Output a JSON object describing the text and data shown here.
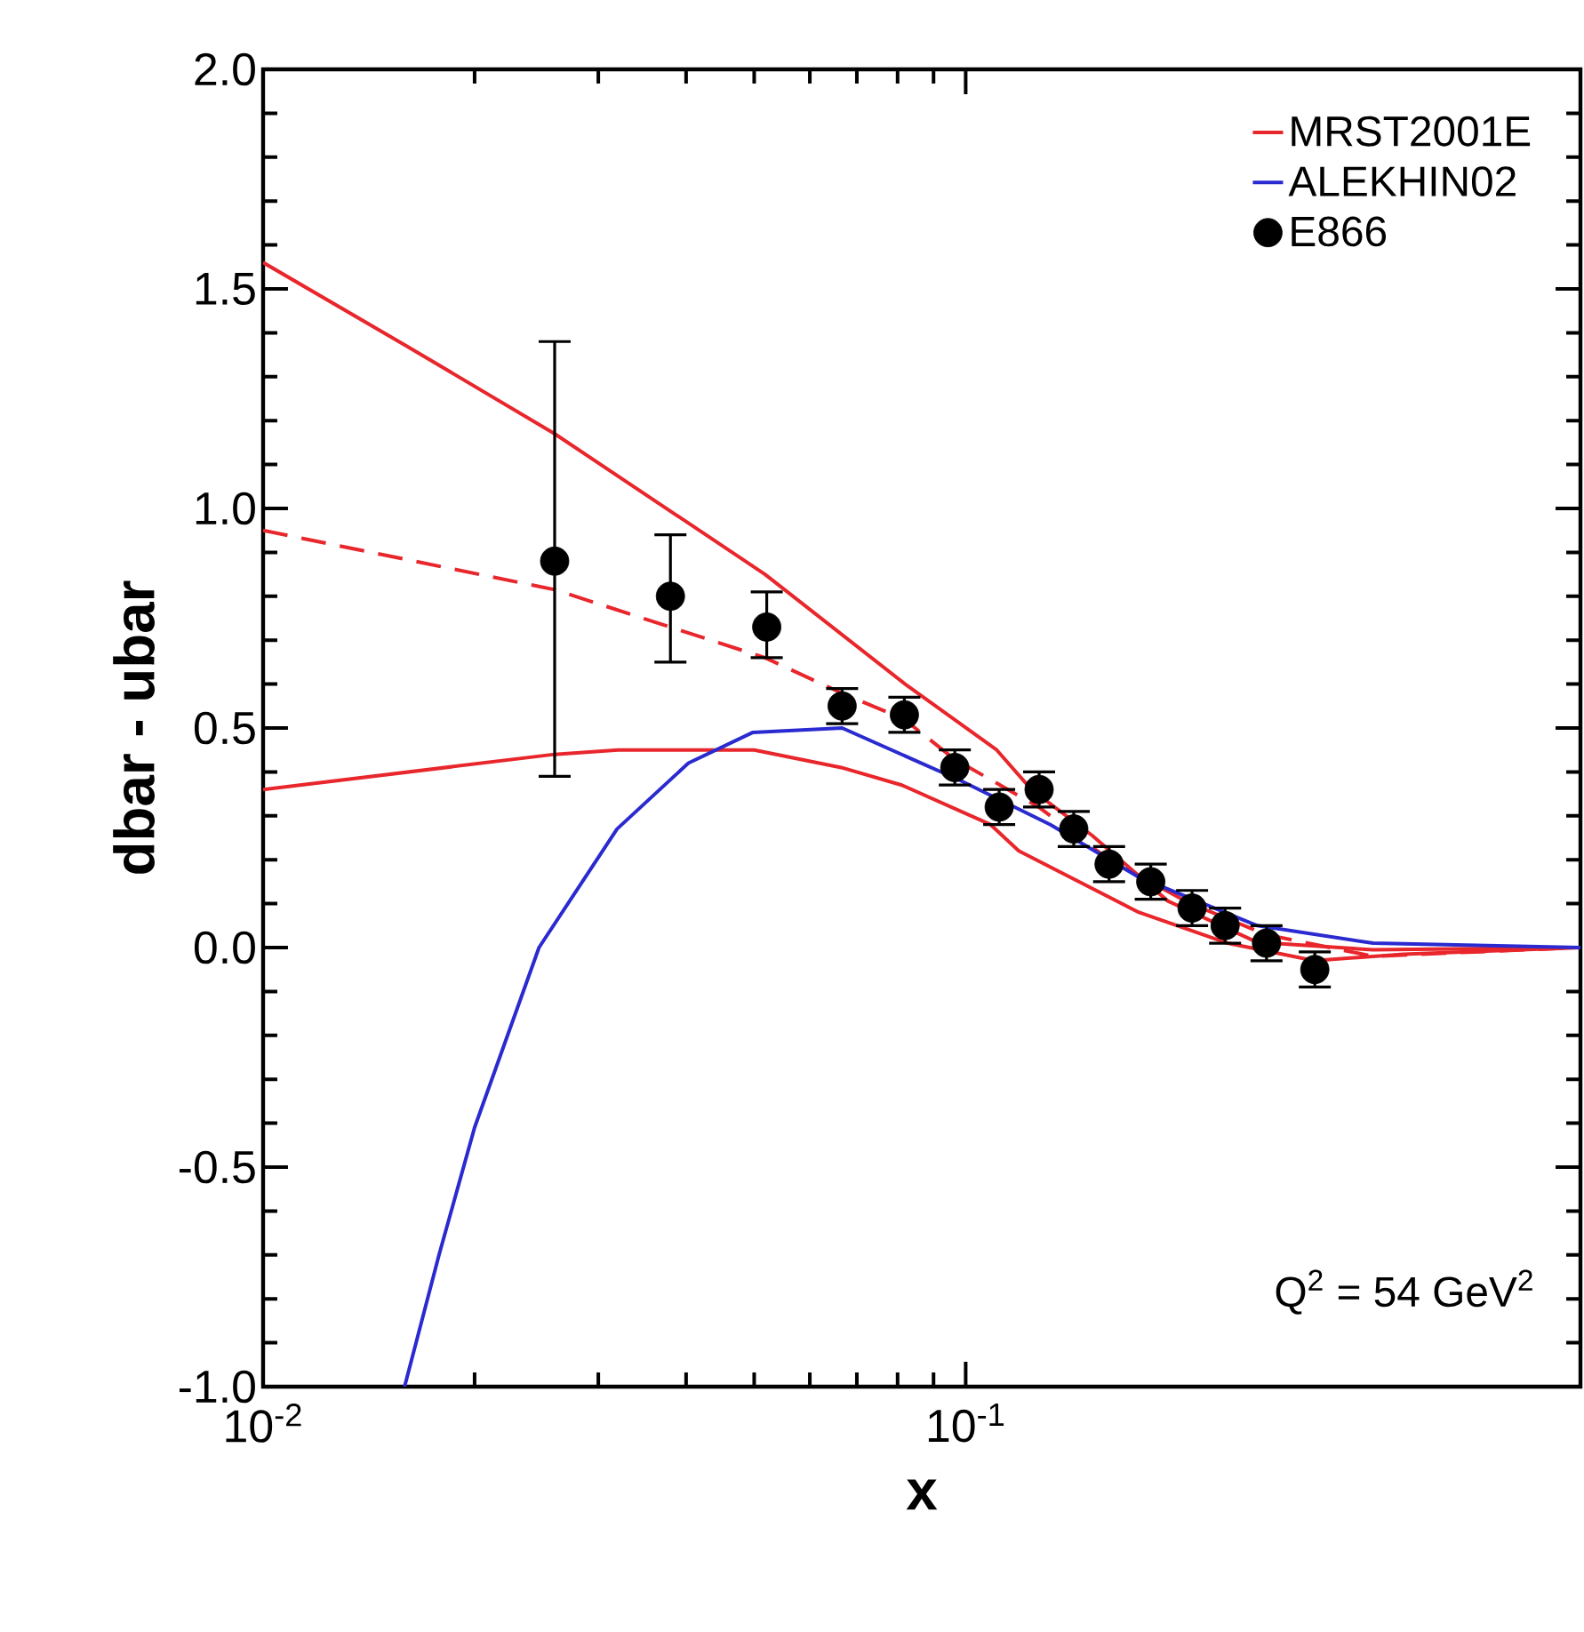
{
  "chart_data": {
    "type": "line",
    "marker": "circle",
    "xlabel": "x",
    "ylabel": "dbar - ubar",
    "log": "x",
    "legend": "top right",
    "xlim": [
      0.01,
      0.75
    ],
    "ylim": [
      -1.0,
      2.0
    ],
    "xticks": [
      {
        "value": 0.01,
        "label": "10$^{-2}$"
      },
      {
        "value": 0.1,
        "label": "10$^{-1}$"
      }
    ],
    "yticks": [
      {
        "value": -1.0,
        "label": "-1.0"
      },
      {
        "value": -0.5,
        "label": "-0.5"
      },
      {
        "value": 0,
        "label": "0.0"
      },
      {
        "value": 0.5,
        "label": "0.5"
      },
      {
        "value": 1.0,
        "label": "1.0"
      },
      {
        "value": 1.5,
        "label": "1.5"
      },
      {
        "value": 2.0,
        "label": "2.0"
      }
    ],
    "annotations": [
      "Q$^{2}$ = 54 GeV$^{2}$"
    ],
    "series": [
      {
        "type": "line",
        "marker": "none",
        "color": "#e8262b",
        "x": [
          0.01,
          0.026,
          0.032,
          0.05,
          0.0665,
          0.0811,
          0.1085,
          0.119,
          0.1765,
          0.236,
          0.3135,
          0.42,
          0.75
        ],
        "values": [
          0.36,
          0.44,
          0.45,
          0.45,
          0.41,
          0.37,
          0.28,
          0.22,
          0.08,
          0.01,
          -0.03,
          -0.015,
          0
        ]
      },
      {
        "type": "line",
        "marker": "none",
        "color": "#e8262b",
        "line_style": "dashed",
        "x": [
          0.01,
          0.026,
          0.0518,
          0.0665,
          0.0817,
          0.0962,
          0.127,
          0.16,
          0.209,
          0.267,
          0.38,
          0.53,
          0.75
        ],
        "values": [
          0.95,
          0.815,
          0.66,
          0.58,
          0.52,
          0.43,
          0.32,
          0.2,
          0.1,
          0.03,
          -0.02,
          -0.01,
          0
        ]
      },
      {
        "type": "line",
        "marker": "none",
        "name": "MRST2001E",
        "color": "#e8262b",
        "x": [
          0.01,
          0.016,
          0.026,
          0.0518,
          0.082,
          0.1107,
          0.124,
          0.1514,
          0.194,
          0.26,
          0.38,
          0.75
        ],
        "values": [
          1.56,
          1.37,
          1.17,
          0.85,
          0.6,
          0.45,
          0.36,
          0.255,
          0.106,
          0.012,
          -0.005,
          0
        ]
      },
      {
        "type": "line",
        "marker": "none",
        "name": "ALEKHIN02",
        "color": "#2a2ad0",
        "x": [
          0.0159,
          0.0178,
          0.02,
          0.0247,
          0.0319,
          0.0403,
          0.0498,
          0.0667,
          0.0984,
          0.132,
          0.1765,
          0.26,
          0.38,
          0.75
        ],
        "values": [
          -1.0,
          -0.7,
          -0.41,
          0.0,
          0.27,
          0.42,
          0.49,
          0.5,
          0.38,
          0.28,
          0.16,
          0.05,
          0.01,
          0
        ]
      },
      {
        "type": "scatter",
        "name": "E866",
        "color": "#000000",
        "x": [
          0.026,
          0.038,
          0.0521,
          0.0667,
          0.0818,
          0.0965,
          0.1116,
          0.1272,
          0.1425,
          0.16,
          0.1834,
          0.21,
          0.234,
          0.268,
          0.314
        ],
        "values": [
          0.88,
          0.8,
          0.73,
          0.55,
          0.53,
          0.41,
          0.32,
          0.36,
          0.27,
          0.19,
          0.15,
          0.09,
          0.05,
          0.01,
          -0.05
        ],
        "errors": [
          [
            0.39,
            1.38
          ],
          [
            0.65,
            0.94
          ],
          [
            0.66,
            0.81
          ],
          0.04,
          0.04,
          0.04,
          0.04,
          0.04,
          0.04,
          0.04,
          0.04,
          0.04,
          0.04,
          0.04,
          0.04
        ]
      }
    ]
  }
}
